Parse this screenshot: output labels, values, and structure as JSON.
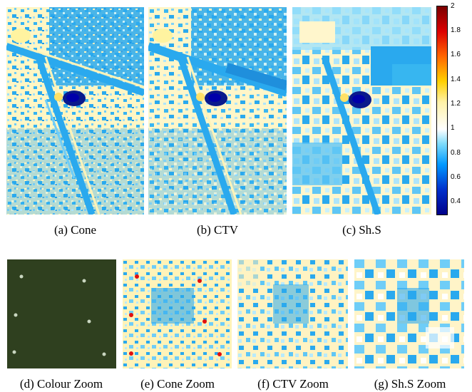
{
  "top_row": {
    "captions": [
      "(a) Cone",
      "(b) CTV",
      "(c) Sh.S"
    ]
  },
  "colorbar": {
    "ticks": [
      "2",
      "1.8",
      "1.6",
      "1.4",
      "1.2",
      "1",
      "0.8",
      "0.6",
      "0.4"
    ],
    "range": [
      0.3,
      2.0
    ],
    "colormap": "jet-like, white at 1"
  },
  "bottom_row": {
    "captions": [
      "(d) Colour Zoom",
      "(e) Cone Zoom",
      "(f) CTV Zoom",
      "(g) Sh.S Zoom"
    ]
  },
  "colors": {
    "background_blue": "#2aa9ee",
    "light_cyan": "#b8eafc",
    "pale_yellow": "#fff3b8",
    "dark_blue": "#0a1a8c",
    "grass_green": "#29381c"
  }
}
